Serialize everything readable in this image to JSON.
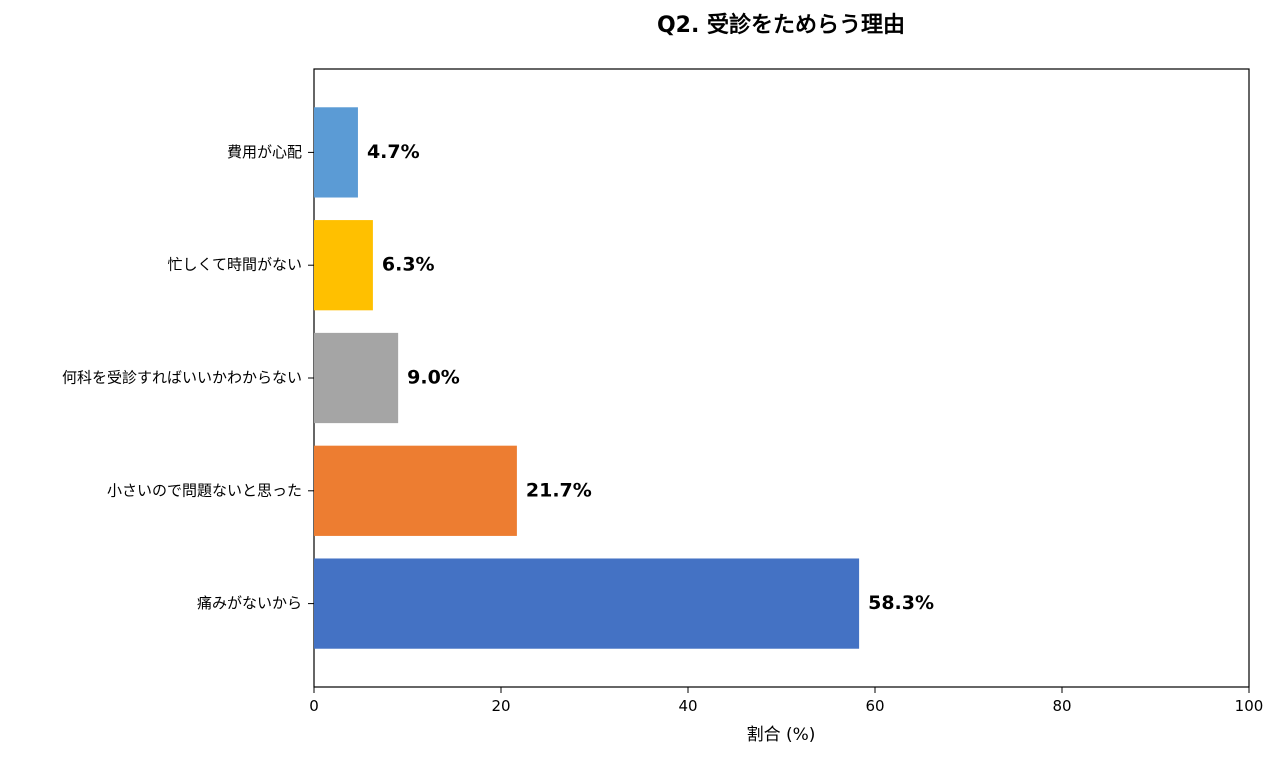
{
  "chart_data": {
    "type": "bar",
    "orientation": "horizontal",
    "title": "Q2. 受診をためらう理由",
    "xlabel": "割合 (%)",
    "ylabel": "",
    "xlim": [
      0,
      100
    ],
    "xticks": [
      0,
      20,
      40,
      60,
      80,
      100
    ],
    "grid": false,
    "categories": [
      "費用が心配",
      "忙しくて時間がない",
      "何科を受診すればいいかわからない",
      "小さいので問題ないと思った",
      "痛みがないから"
    ],
    "values": [
      4.7,
      6.3,
      9.0,
      21.7,
      58.3
    ],
    "data_labels": [
      "4.7%",
      "6.3%",
      "9.0%",
      "21.7%",
      "58.3%"
    ],
    "colors": [
      "#5B9BD5",
      "#FFC000",
      "#A5A5A5",
      "#ED7D31",
      "#4472C4"
    ]
  }
}
